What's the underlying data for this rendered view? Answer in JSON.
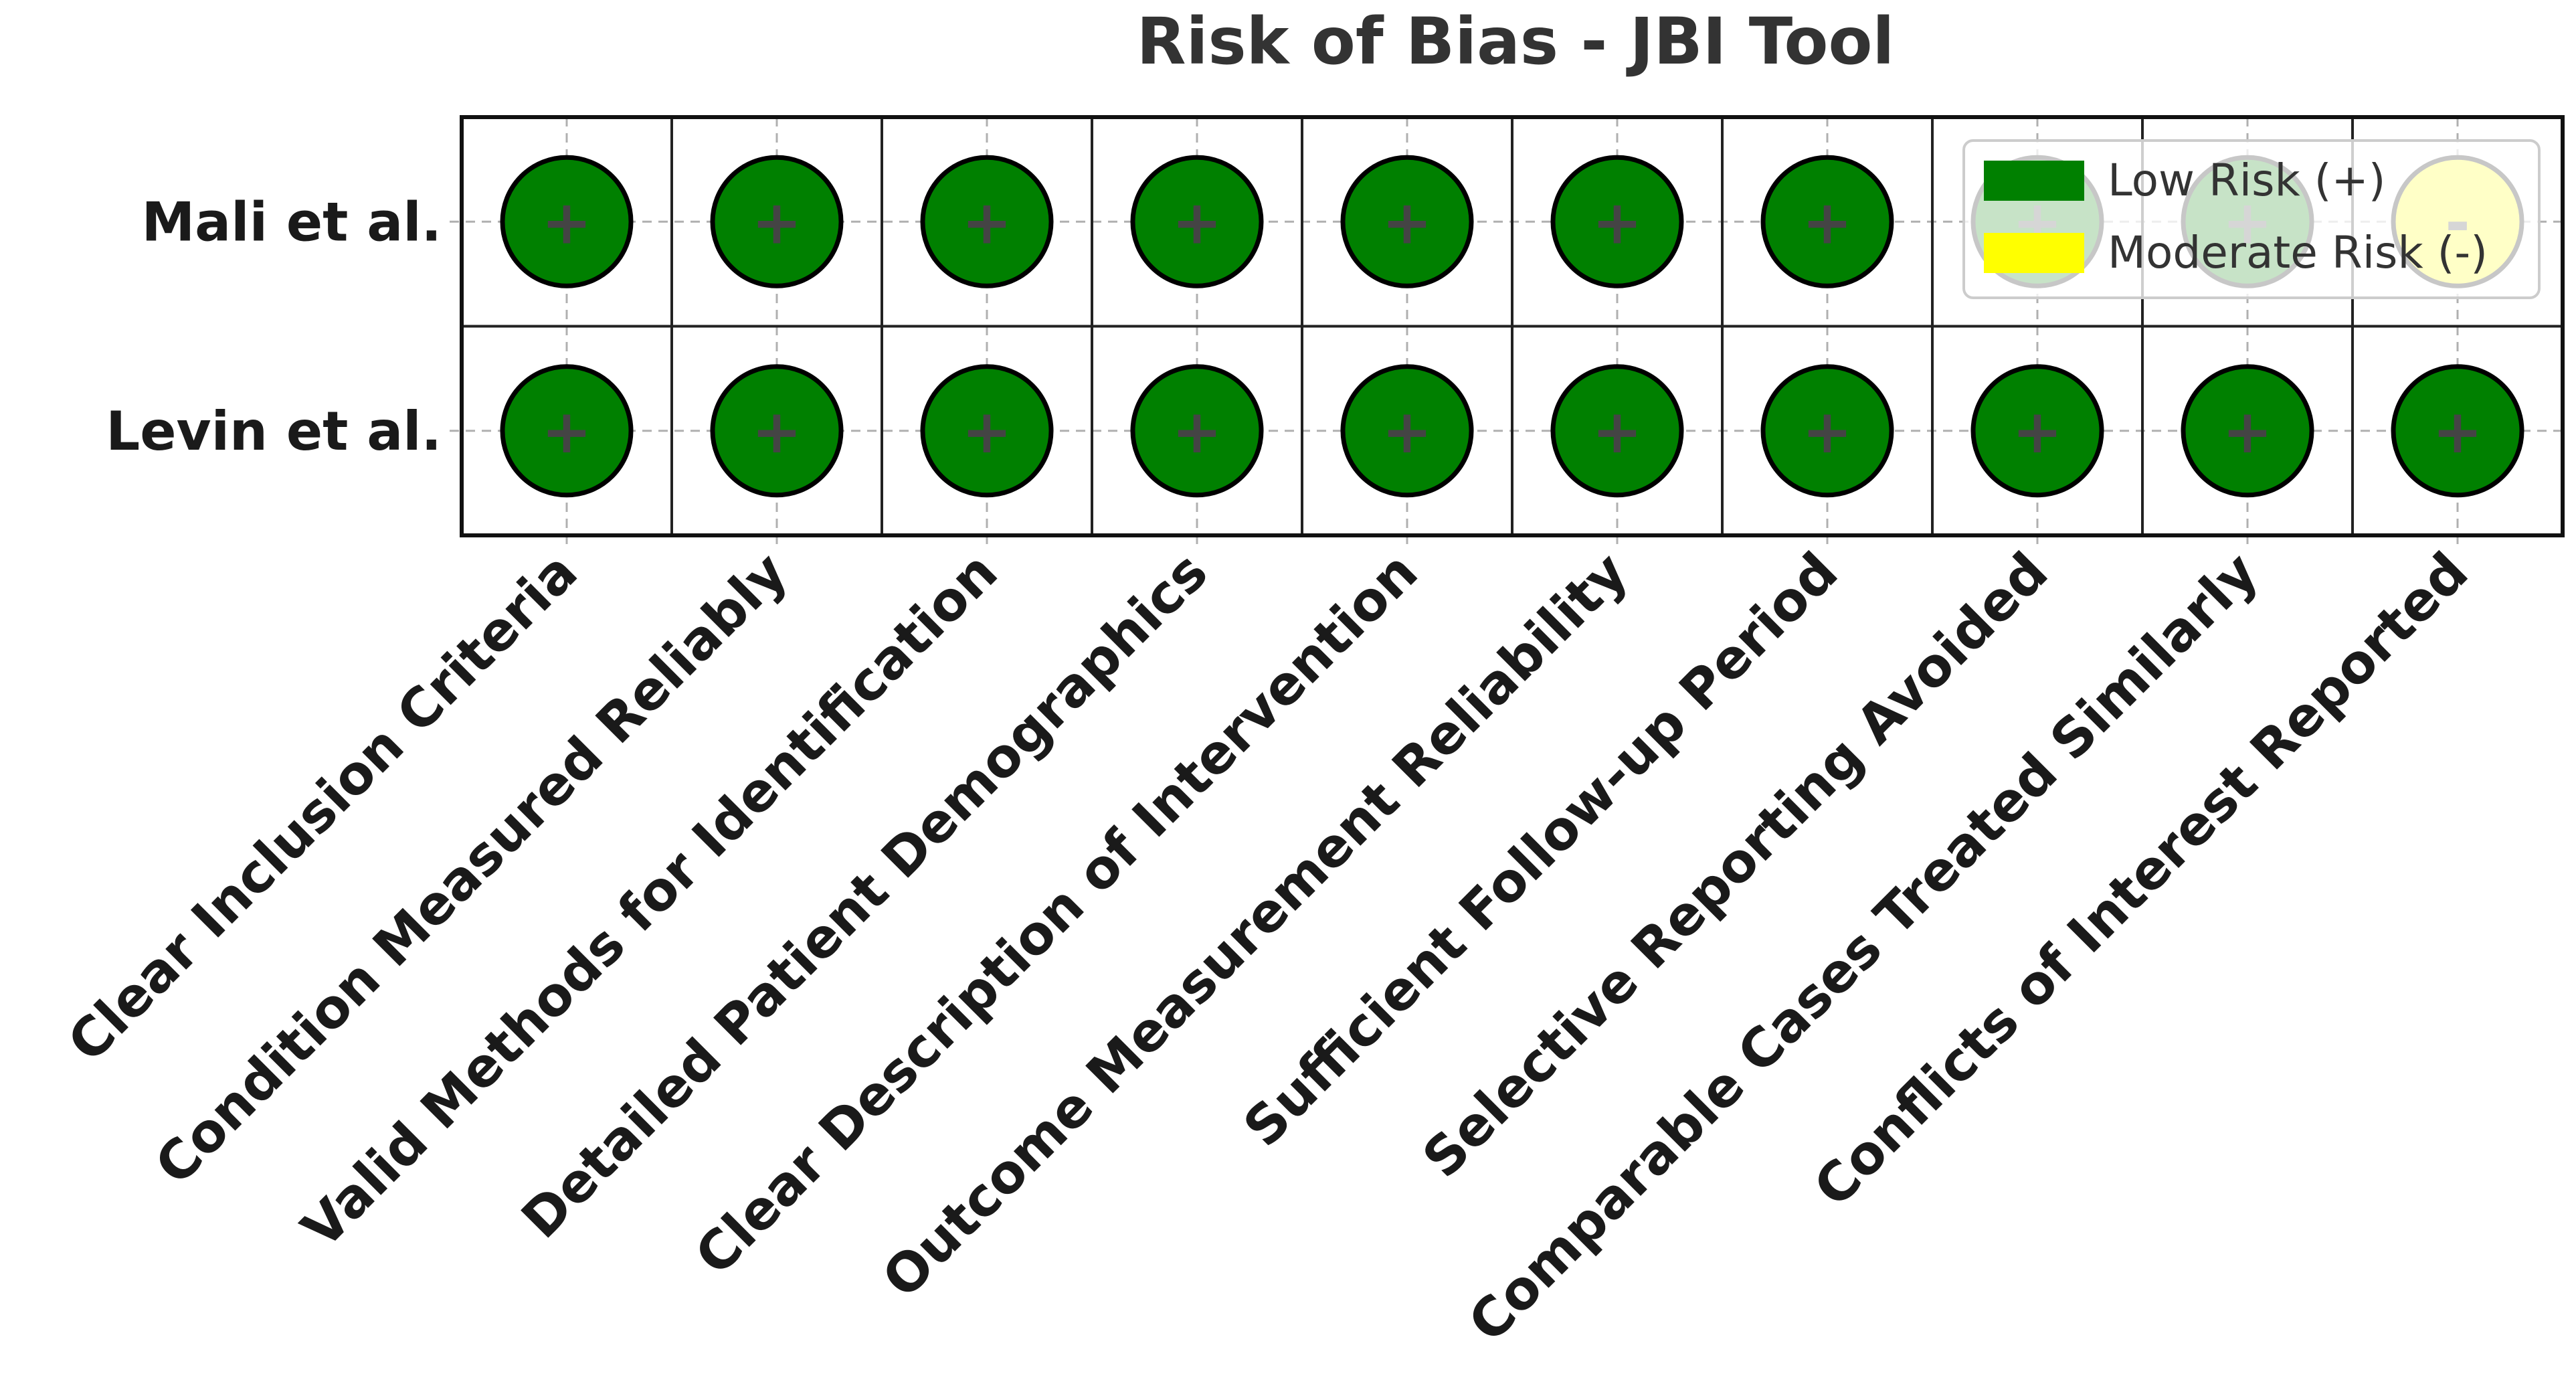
{
  "chart_data": {
    "type": "heatmap",
    "title": "Risk of Bias - JBI Tool",
    "studies": [
      "Mali et al.",
      "Levin et al."
    ],
    "domains": [
      "Clear Inclusion Criteria",
      "Condition Measured Reliably",
      "Valid Methods for Identification",
      "Detailed Patient Demographics",
      "Clear Description of Intervention",
      "Outcome Measurement Reliability",
      "Sufficient Follow-up Period",
      "Selective Reporting Avoided",
      "Comparable Cases Treated Similarly",
      "Conflicts of Interest Reported"
    ],
    "judgements": [
      [
        "low",
        "low",
        "low",
        "low",
        "low",
        "low",
        "low",
        "low",
        "low",
        "moderate"
      ],
      [
        "low",
        "low",
        "low",
        "low",
        "low",
        "low",
        "low",
        "low",
        "low",
        "low"
      ]
    ],
    "legend": {
      "placement": "upper-right",
      "entries": [
        {
          "key": "low",
          "label": "Low Risk (+)",
          "color": "#008000",
          "symbol": "+"
        },
        {
          "key": "moderate",
          "label": "Moderate Risk (-)",
          "color": "#ffff00",
          "symbol": "-"
        }
      ]
    },
    "grid": true
  }
}
